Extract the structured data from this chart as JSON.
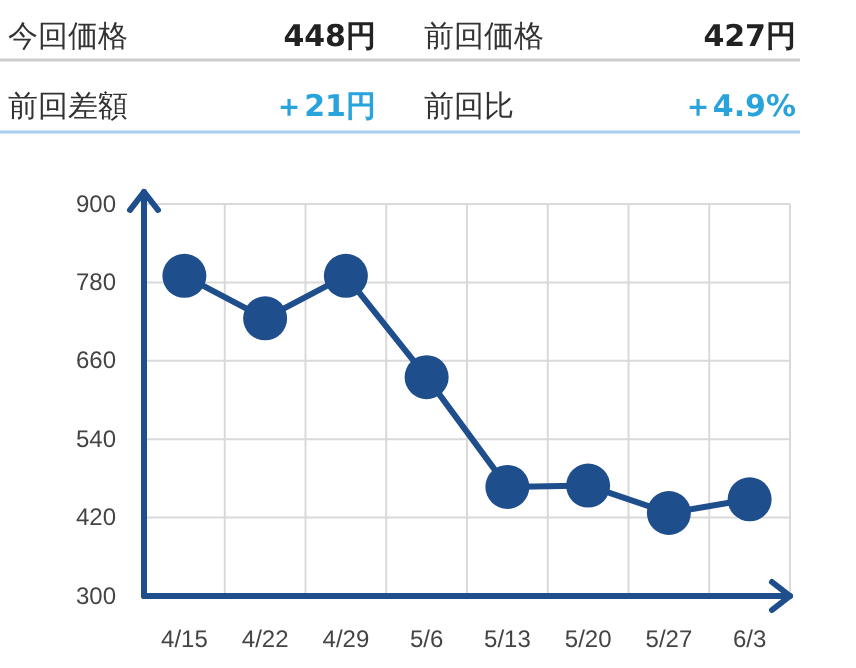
{
  "chart_data": {
    "type": "line",
    "categories": [
      "4/15",
      "4/22",
      "4/29",
      "5/6",
      "5/13",
      "5/20",
      "5/27",
      "6/3"
    ],
    "series": [
      {
        "color": "#1f4e8c",
        "values": [
          790,
          725,
          790,
          635,
          467,
          469,
          427,
          448
        ]
      }
    ],
    "ylim": [
      300,
      900
    ],
    "yticks": [
      300,
      420,
      540,
      660,
      780,
      900
    ],
    "grid": true,
    "marker": "circle",
    "line_style": "solid",
    "annotations": [
      "今回価格",
      "448円",
      "前回価格",
      "427円",
      "前回差額",
      "＋21円",
      "前回比",
      "＋4.9%"
    ]
  }
}
